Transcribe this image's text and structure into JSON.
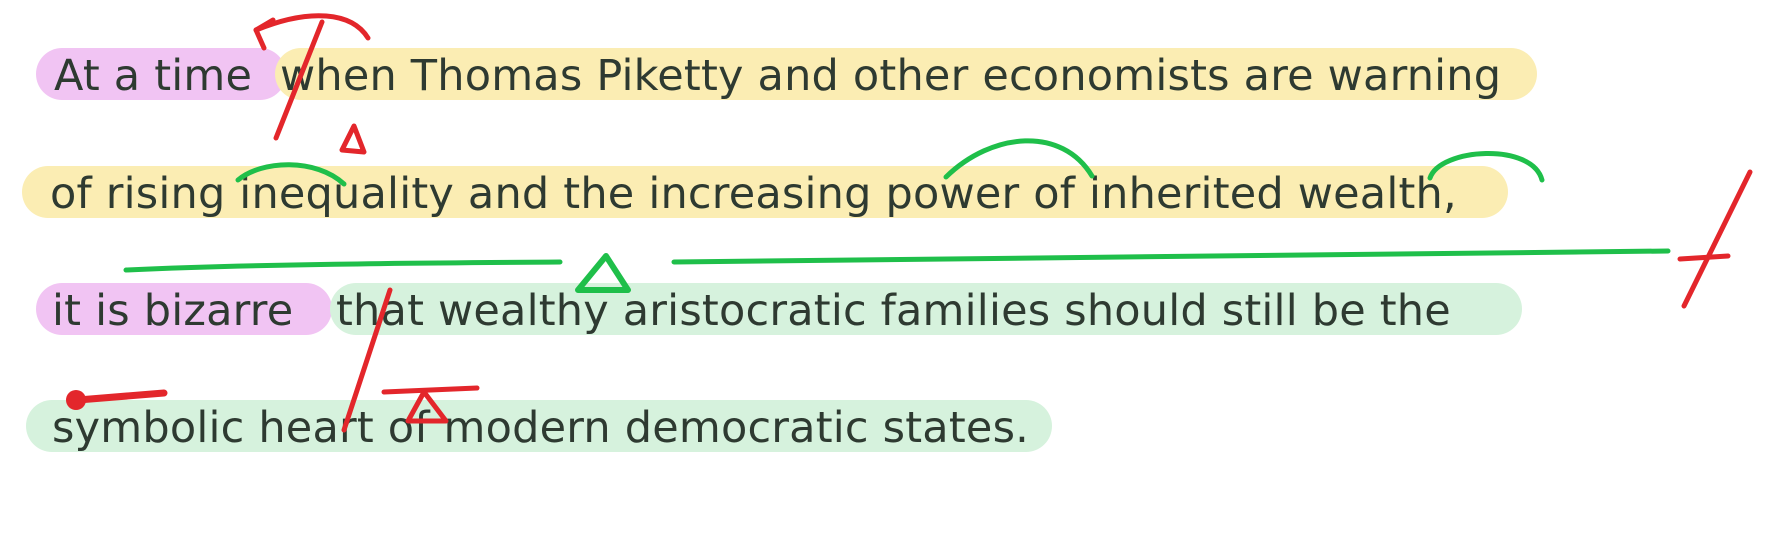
{
  "colors": {
    "text": "#2e3a31",
    "highlight_intro": "#f1c4f3",
    "highlight_subordinate": "#fbedb3",
    "highlight_main": "#d6f2dd",
    "annotation_red": "#e3262b",
    "annotation_green": "#1fbf4a"
  },
  "passage": {
    "line1": {
      "intro": "At a time",
      "rest": "when Thomas Piketty and other economists are warning"
    },
    "line2": {
      "text": "of rising inequality and the increasing power of inherited wealth",
      "comma": ","
    },
    "line3": {
      "intro": "it is bizarre",
      "rest": "that wealthy aristocratic families should still be the"
    },
    "line4": {
      "text": "symbolic heart of modern democratic states."
    }
  },
  "annotations": [
    "red-slash-divider",
    "red-curved-arrow",
    "red-triangle-marker",
    "green-arc",
    "green-underline",
    "green-triangle-marker",
    "red-pin"
  ]
}
